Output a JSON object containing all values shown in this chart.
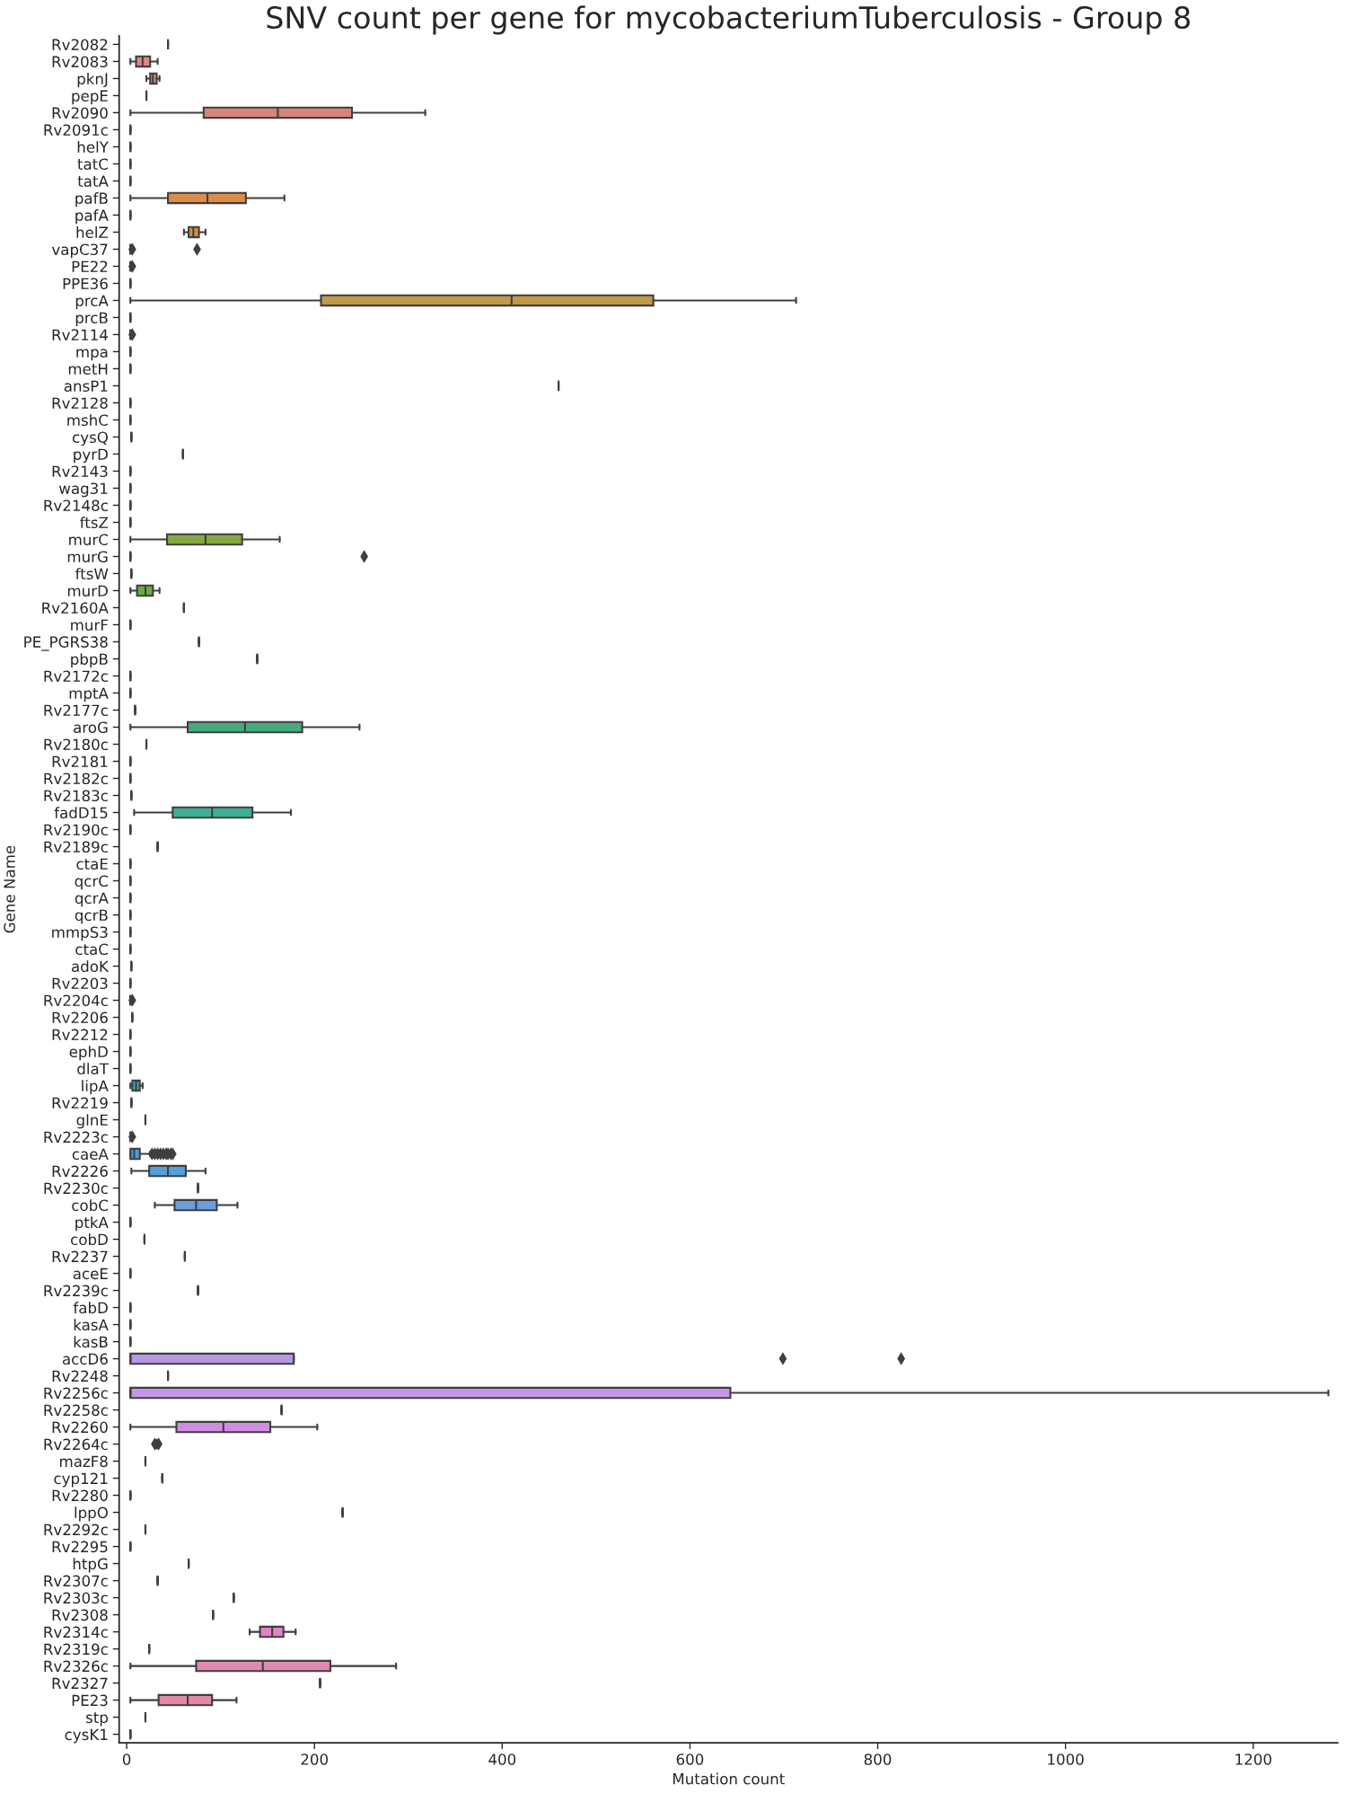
{
  "chart_data": {
    "type": "box",
    "title": "SNV count per gene for mycobacteriumTuberculosis - Group 8",
    "xlabel": "Mutation count",
    "ylabel": "Gene Name",
    "orientation": "horizontal",
    "marker": "diamond",
    "grid": false,
    "xlim": [
      -8,
      1290
    ],
    "xticks": [
      0,
      200,
      400,
      600,
      800,
      1000,
      1200
    ],
    "categories": [
      "Rv2082",
      "Rv2083",
      "pknJ",
      "pepE",
      "Rv2090",
      "Rv2091c",
      "helY",
      "tatC",
      "tatA",
      "pafB",
      "pafA",
      "helZ",
      "vapC37",
      "PE22",
      "PPE36",
      "prcA",
      "prcB",
      "Rv2114",
      "mpa",
      "metH",
      "ansP1",
      "Rv2128",
      "mshC",
      "cysQ",
      "pyrD",
      "Rv2143",
      "wag31",
      "Rv2148c",
      "ftsZ",
      "murC",
      "murG",
      "ftsW",
      "murD",
      "Rv2160A",
      "murF",
      "PE_PGRS38",
      "pbpB",
      "Rv2172c",
      "mptA",
      "Rv2177c",
      "aroG",
      "Rv2180c",
      "Rv2181",
      "Rv2182c",
      "Rv2183c",
      "fadD15",
      "Rv2190c",
      "Rv2189c",
      "ctaE",
      "qcrC",
      "qcrA",
      "qcrB",
      "mmpS3",
      "ctaC",
      "adoK",
      "Rv2203",
      "Rv2204c",
      "Rv2206",
      "Rv2212",
      "ephD",
      "dlaT",
      "lipA",
      "Rv2219",
      "glnE",
      "Rv2223c",
      "caeA",
      "Rv2226",
      "Rv2230c",
      "cobC",
      "ptkA",
      "cobD",
      "Rv2237",
      "aceE",
      "Rv2239c",
      "fabD",
      "kasA",
      "kasB",
      "accD6",
      "Rv2248",
      "Rv2256c",
      "Rv2258c",
      "Rv2260",
      "Rv2264c",
      "mazF8",
      "cyp121",
      "Rv2280",
      "lppO",
      "Rv2292c",
      "Rv2295",
      "htpG",
      "Rv2307c",
      "Rv2303c",
      "Rv2308",
      "Rv2314c",
      "Rv2319c",
      "Rv2326c",
      "Rv2327",
      "PE23",
      "stp",
      "cysK1"
    ],
    "colors": [
      null,
      "#e0857f",
      "#d98a86",
      null,
      "#d9847a",
      null,
      null,
      null,
      null,
      "#dc8c48",
      null,
      "#d49040",
      null,
      null,
      null,
      "#c09a48",
      null,
      null,
      null,
      null,
      null,
      null,
      null,
      null,
      null,
      null,
      null,
      null,
      null,
      "#88a843",
      null,
      null,
      "#6aaa45",
      null,
      null,
      null,
      null,
      null,
      null,
      null,
      "#46aa7c",
      null,
      null,
      null,
      null,
      "#3faf94",
      null,
      null,
      null,
      null,
      null,
      null,
      null,
      null,
      null,
      null,
      null,
      null,
      null,
      null,
      null,
      "#3aa5b0",
      null,
      null,
      null,
      "#48a0d2",
      "#54a0da",
      null,
      "#6a9fdc",
      null,
      null,
      null,
      null,
      null,
      null,
      null,
      null,
      "#b896e6",
      null,
      "#c496e8",
      null,
      "#d08ee2",
      null,
      null,
      null,
      null,
      null,
      null,
      null,
      null,
      null,
      null,
      null,
      "#e086c6",
      null,
      "#e088b4",
      null,
      "#e08aa6",
      null,
      null
    ],
    "boxes": [
      {
        "low": 44,
        "q1": 44,
        "median": 44,
        "q3": 44,
        "high": 44
      },
      {
        "low": 4,
        "q1": 10,
        "median": 17,
        "q3": 25,
        "high": 33
      },
      {
        "low": 21,
        "q1": 25,
        "median": 28,
        "q3": 32,
        "high": 35
      },
      {
        "low": 21,
        "q1": 21,
        "median": 21,
        "q3": 21,
        "high": 21
      },
      {
        "low": 4,
        "q1": 82,
        "median": 161,
        "q3": 240,
        "high": 318
      },
      {
        "low": 4,
        "q1": 4,
        "median": 4,
        "q3": 4,
        "high": 4
      },
      {
        "low": 4,
        "q1": 4,
        "median": 4,
        "q3": 4,
        "high": 4
      },
      {
        "low": 4,
        "q1": 4,
        "median": 4,
        "q3": 4,
        "high": 4
      },
      {
        "low": 4,
        "q1": 4,
        "median": 4,
        "q3": 4,
        "high": 4
      },
      {
        "low": 4,
        "q1": 44,
        "median": 86,
        "q3": 127,
        "high": 168
      },
      {
        "low": 4,
        "q1": 4,
        "median": 4,
        "q3": 4,
        "high": 4
      },
      {
        "low": 61,
        "q1": 66,
        "median": 71,
        "q3": 77,
        "high": 84
      },
      {
        "low": 4,
        "q1": 4,
        "median": 4,
        "q3": 4,
        "high": 4,
        "outliers": [
          6,
          75
        ]
      },
      {
        "low": 4,
        "q1": 4,
        "median": 4,
        "q3": 4,
        "high": 4,
        "outliers": [
          6
        ]
      },
      {
        "low": 4,
        "q1": 4,
        "median": 4,
        "q3": 4,
        "high": 4
      },
      {
        "low": 4,
        "q1": 207,
        "median": 410,
        "q3": 561,
        "high": 713
      },
      {
        "low": 4,
        "q1": 4,
        "median": 4,
        "q3": 4,
        "high": 4
      },
      {
        "low": 4,
        "q1": 4,
        "median": 4,
        "q3": 4,
        "high": 4,
        "outliers": [
          6
        ]
      },
      {
        "low": 4,
        "q1": 4,
        "median": 4,
        "q3": 4,
        "high": 4
      },
      {
        "low": 4,
        "q1": 4,
        "median": 4,
        "q3": 4,
        "high": 4
      },
      {
        "low": 460,
        "q1": 460,
        "median": 460,
        "q3": 460,
        "high": 460
      },
      {
        "low": 4,
        "q1": 4,
        "median": 4,
        "q3": 4,
        "high": 4
      },
      {
        "low": 4,
        "q1": 4,
        "median": 4,
        "q3": 4,
        "high": 4
      },
      {
        "low": 5,
        "q1": 5,
        "median": 5,
        "q3": 5,
        "high": 5
      },
      {
        "low": 60,
        "q1": 60,
        "median": 60,
        "q3": 60,
        "high": 60
      },
      {
        "low": 4,
        "q1": 4,
        "median": 4,
        "q3": 4,
        "high": 4
      },
      {
        "low": 4,
        "q1": 4,
        "median": 4,
        "q3": 4,
        "high": 4
      },
      {
        "low": 4,
        "q1": 4,
        "median": 4,
        "q3": 4,
        "high": 4
      },
      {
        "low": 4,
        "q1": 4,
        "median": 4,
        "q3": 4,
        "high": 4
      },
      {
        "low": 4,
        "q1": 43,
        "median": 84,
        "q3": 123,
        "high": 163
      },
      {
        "low": 4,
        "q1": 4,
        "median": 4,
        "q3": 4,
        "high": 4,
        "outliers": [
          253
        ]
      },
      {
        "low": 5,
        "q1": 5,
        "median": 5,
        "q3": 5,
        "high": 5
      },
      {
        "low": 4,
        "q1": 11,
        "median": 20,
        "q3": 28,
        "high": 35
      },
      {
        "low": 61,
        "q1": 61,
        "median": 61,
        "q3": 61,
        "high": 61
      },
      {
        "low": 4,
        "q1": 4,
        "median": 4,
        "q3": 4,
        "high": 4
      },
      {
        "low": 77,
        "q1": 77,
        "median": 77,
        "q3": 77,
        "high": 77
      },
      {
        "low": 139,
        "q1": 139,
        "median": 139,
        "q3": 139,
        "high": 139
      },
      {
        "low": 4,
        "q1": 4,
        "median": 4,
        "q3": 4,
        "high": 4
      },
      {
        "low": 4,
        "q1": 4,
        "median": 4,
        "q3": 4,
        "high": 4
      },
      {
        "low": 9,
        "q1": 9,
        "median": 9,
        "q3": 9,
        "high": 9
      },
      {
        "low": 4,
        "q1": 65,
        "median": 126,
        "q3": 187,
        "high": 248
      },
      {
        "low": 21,
        "q1": 21,
        "median": 21,
        "q3": 21,
        "high": 21
      },
      {
        "low": 4,
        "q1": 4,
        "median": 4,
        "q3": 4,
        "high": 4
      },
      {
        "low": 4,
        "q1": 4,
        "median": 4,
        "q3": 4,
        "high": 4
      },
      {
        "low": 5,
        "q1": 5,
        "median": 5,
        "q3": 5,
        "high": 5
      },
      {
        "low": 8,
        "q1": 49,
        "median": 91,
        "q3": 134,
        "high": 175
      },
      {
        "low": 4,
        "q1": 4,
        "median": 4,
        "q3": 4,
        "high": 4
      },
      {
        "low": 33,
        "q1": 33,
        "median": 33,
        "q3": 33,
        "high": 33
      },
      {
        "low": 4,
        "q1": 4,
        "median": 4,
        "q3": 4,
        "high": 4
      },
      {
        "low": 4,
        "q1": 4,
        "median": 4,
        "q3": 4,
        "high": 4
      },
      {
        "low": 4,
        "q1": 4,
        "median": 4,
        "q3": 4,
        "high": 4
      },
      {
        "low": 4,
        "q1": 4,
        "median": 4,
        "q3": 4,
        "high": 4
      },
      {
        "low": 4,
        "q1": 4,
        "median": 4,
        "q3": 4,
        "high": 4
      },
      {
        "low": 4,
        "q1": 4,
        "median": 4,
        "q3": 4,
        "high": 4
      },
      {
        "low": 5,
        "q1": 5,
        "median": 5,
        "q3": 5,
        "high": 5
      },
      {
        "low": 4,
        "q1": 4,
        "median": 4,
        "q3": 4,
        "high": 4
      },
      {
        "low": 4,
        "q1": 4,
        "median": 4,
        "q3": 4,
        "high": 4,
        "outliers": [
          6
        ]
      },
      {
        "low": 6,
        "q1": 6,
        "median": 6,
        "q3": 6,
        "high": 6
      },
      {
        "low": 4,
        "q1": 4,
        "median": 4,
        "q3": 4,
        "high": 4
      },
      {
        "low": 4,
        "q1": 4,
        "median": 4,
        "q3": 4,
        "high": 4
      },
      {
        "low": 4,
        "q1": 4,
        "median": 4,
        "q3": 4,
        "high": 4
      },
      {
        "low": 4,
        "q1": 6,
        "median": 10,
        "q3": 14,
        "high": 17
      },
      {
        "low": 5,
        "q1": 5,
        "median": 5,
        "q3": 5,
        "high": 5
      },
      {
        "low": 20,
        "q1": 20,
        "median": 20,
        "q3": 20,
        "high": 20
      },
      {
        "low": 4,
        "q1": 4,
        "median": 4,
        "q3": 4,
        "high": 4,
        "outliers": [
          6
        ]
      },
      {
        "low": 4,
        "q1": 4,
        "median": 8,
        "q3": 14,
        "high": 25,
        "outliers": [
          27,
          30,
          33,
          36,
          39,
          42,
          44,
          47,
          49
        ]
      },
      {
        "low": 5,
        "q1": 24,
        "median": 44,
        "q3": 63,
        "high": 84
      },
      {
        "low": 76,
        "q1": 76,
        "median": 76,
        "q3": 76,
        "high": 76
      },
      {
        "low": 30,
        "q1": 51,
        "median": 74,
        "q3": 96,
        "high": 118
      },
      {
        "low": 4,
        "q1": 4,
        "median": 4,
        "q3": 4,
        "high": 4
      },
      {
        "low": 19,
        "q1": 19,
        "median": 19,
        "q3": 19,
        "high": 19
      },
      {
        "low": 62,
        "q1": 62,
        "median": 62,
        "q3": 62,
        "high": 62
      },
      {
        "low": 4,
        "q1": 4,
        "median": 4,
        "q3": 4,
        "high": 4
      },
      {
        "low": 76,
        "q1": 76,
        "median": 76,
        "q3": 76,
        "high": 76
      },
      {
        "low": 4,
        "q1": 4,
        "median": 4,
        "q3": 4,
        "high": 4
      },
      {
        "low": 4,
        "q1": 4,
        "median": 4,
        "q3": 4,
        "high": 4
      },
      {
        "low": 4,
        "q1": 4,
        "median": 4,
        "q3": 4,
        "high": 4
      },
      {
        "low": 4,
        "q1": 4,
        "median": 4,
        "q3": 178,
        "high": 178,
        "outliers": [
          699,
          825
        ]
      },
      {
        "low": 44,
        "q1": 44,
        "median": 44,
        "q3": 44,
        "high": 44
      },
      {
        "low": 4,
        "q1": 4,
        "median": 4,
        "q3": 643,
        "high": 1280
      },
      {
        "low": 165,
        "q1": 165,
        "median": 165,
        "q3": 165,
        "high": 165
      },
      {
        "low": 4,
        "q1": 53,
        "median": 103,
        "q3": 153,
        "high": 203
      },
      {
        "low": 32,
        "q1": 32,
        "median": 32,
        "q3": 32,
        "high": 32,
        "outliers": [
          30,
          34
        ]
      },
      {
        "low": 20,
        "q1": 20,
        "median": 20,
        "q3": 20,
        "high": 20
      },
      {
        "low": 38,
        "q1": 38,
        "median": 38,
        "q3": 38,
        "high": 38
      },
      {
        "low": 4,
        "q1": 4,
        "median": 4,
        "q3": 4,
        "high": 4
      },
      {
        "low": 230,
        "q1": 230,
        "median": 230,
        "q3": 230,
        "high": 230
      },
      {
        "low": 20,
        "q1": 20,
        "median": 20,
        "q3": 20,
        "high": 20
      },
      {
        "low": 4,
        "q1": 4,
        "median": 4,
        "q3": 4,
        "high": 4
      },
      {
        "low": 66,
        "q1": 66,
        "median": 66,
        "q3": 66,
        "high": 66
      },
      {
        "low": 33,
        "q1": 33,
        "median": 33,
        "q3": 33,
        "high": 33
      },
      {
        "low": 114,
        "q1": 114,
        "median": 114,
        "q3": 114,
        "high": 114
      },
      {
        "low": 92,
        "q1": 92,
        "median": 92,
        "q3": 92,
        "high": 92
      },
      {
        "low": 131,
        "q1": 142,
        "median": 155,
        "q3": 167,
        "high": 180
      },
      {
        "low": 24,
        "q1": 24,
        "median": 24,
        "q3": 24,
        "high": 24
      },
      {
        "low": 4,
        "q1": 74,
        "median": 145,
        "q3": 217,
        "high": 287
      },
      {
        "low": 206,
        "q1": 206,
        "median": 206,
        "q3": 206,
        "high": 206
      },
      {
        "low": 4,
        "q1": 34,
        "median": 65,
        "q3": 91,
        "high": 117
      },
      {
        "low": 20,
        "q1": 20,
        "median": 20,
        "q3": 20,
        "high": 20
      },
      {
        "low": 4,
        "q1": 4,
        "median": 4,
        "q3": 4,
        "high": 4
      }
    ]
  }
}
